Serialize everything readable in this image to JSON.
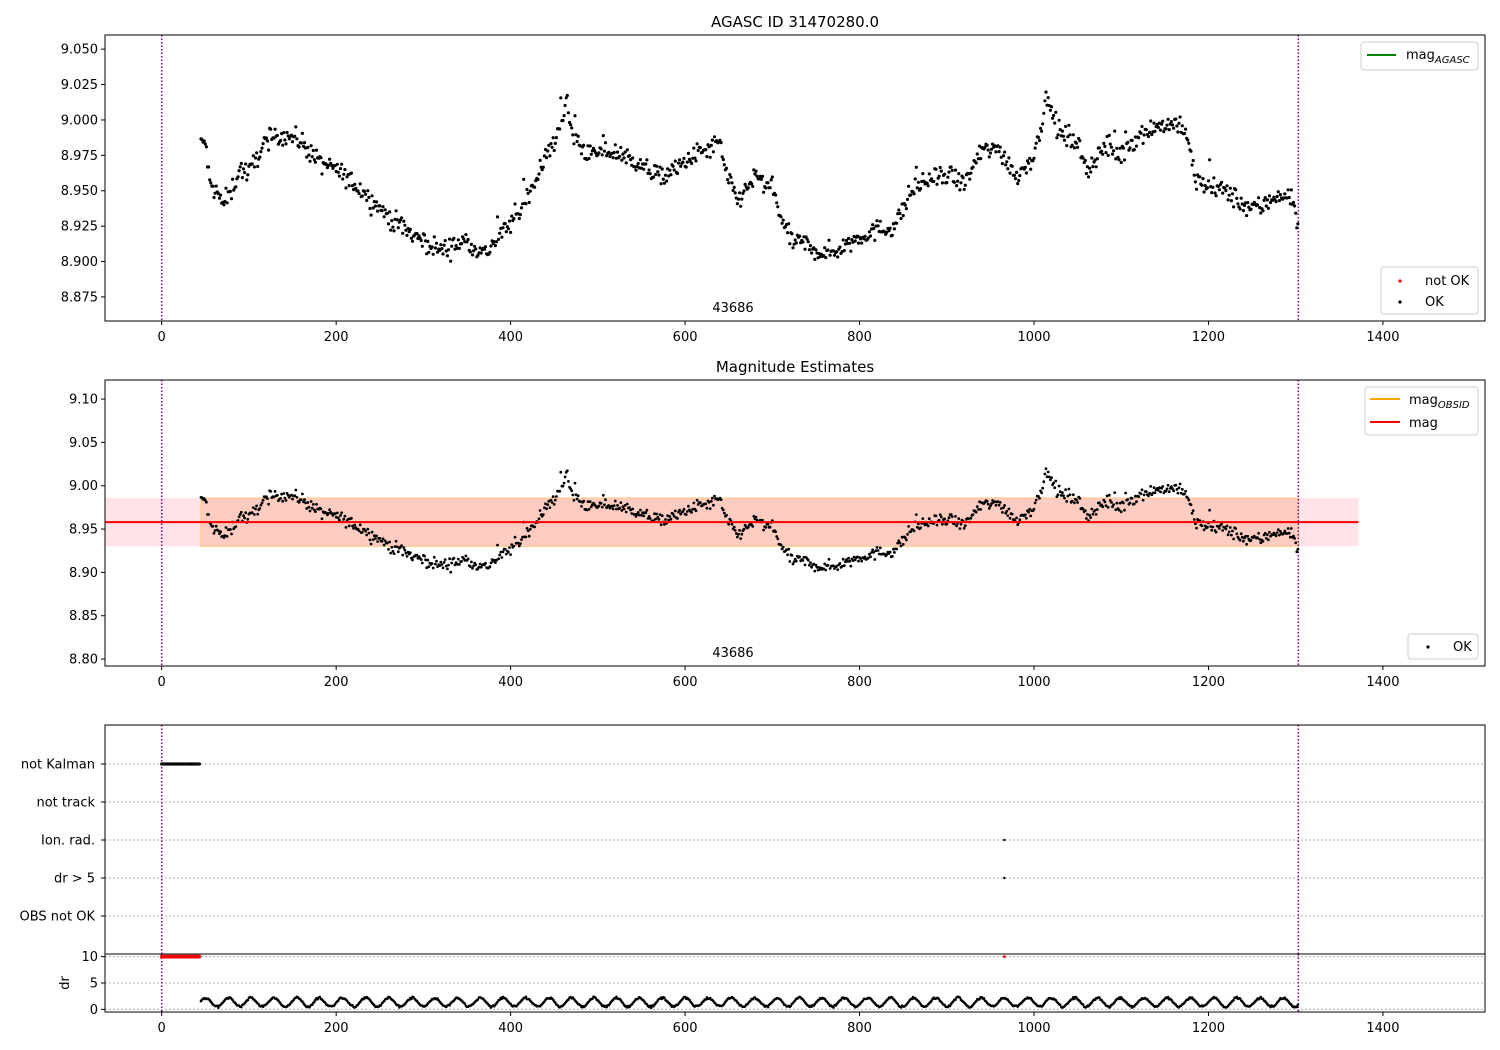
{
  "figure": {
    "title_top": "AGASC ID 31470280.0",
    "title_mid": "Magnitude Estimates"
  },
  "colors": {
    "agasc_line": "#008000",
    "obsid_line": "#ffa500",
    "mag_line": "#ff0000",
    "not_ok": "#ff0000",
    "ok": "#000000",
    "vline": "#800080",
    "band_outer": "#ffc0cb",
    "band_inner": "#ffa07a"
  },
  "chart_data": [
    {
      "type": "scatter",
      "title": "AGASC ID 31470280.0",
      "xlim": [
        -65,
        1517
      ],
      "ylim": [
        8.858,
        9.06
      ],
      "xticks": [
        0,
        200,
        400,
        600,
        800,
        1000,
        1200,
        1400
      ],
      "yticks": [
        8.875,
        8.9,
        8.925,
        8.95,
        8.975,
        9.0,
        9.025,
        9.05
      ],
      "ytick_labels": [
        "8.875",
        "8.900",
        "8.925",
        "8.950",
        "8.975",
        "9.000",
        "9.025",
        "9.050"
      ],
      "obsid_label": "43686",
      "obsid_label_x": 650,
      "vlines": [
        0,
        1303
      ],
      "legends": [
        {
          "placement": "top-right",
          "entries": [
            {
              "label": "mag",
              "sub": "AGASC",
              "kind": "line",
              "color": "#008000"
            }
          ]
        },
        {
          "placement": "bottom-right",
          "entries": [
            {
              "label": "not OK",
              "kind": "dot",
              "color": "#ff0000"
            },
            {
              "label": "OK",
              "kind": "dot",
              "color": "#000000"
            }
          ]
        }
      ],
      "series": [
        {
          "name": "OK",
          "color": "#000000",
          "anchors": [
            [
              45,
              8.983
            ],
            [
              50,
              8.985
            ],
            [
              55,
              8.955
            ],
            [
              65,
              8.947
            ],
            [
              70,
              8.94
            ],
            [
              80,
              8.95
            ],
            [
              90,
              8.966
            ],
            [
              100,
              8.962
            ],
            [
              110,
              8.975
            ],
            [
              120,
              8.985
            ],
            [
              140,
              8.99
            ],
            [
              160,
              8.985
            ],
            [
              180,
              8.97
            ],
            [
              200,
              8.965
            ],
            [
              230,
              8.95
            ],
            [
              260,
              8.932
            ],
            [
              290,
              8.918
            ],
            [
              320,
              8.908
            ],
            [
              350,
              8.915
            ],
            [
              370,
              8.905
            ],
            [
              390,
              8.92
            ],
            [
              410,
              8.935
            ],
            [
              430,
              8.96
            ],
            [
              450,
              8.985
            ],
            [
              465,
              9.012
            ],
            [
              470,
              8.99
            ],
            [
              490,
              8.975
            ],
            [
              510,
              8.978
            ],
            [
              530,
              8.975
            ],
            [
              550,
              8.968
            ],
            [
              570,
              8.96
            ],
            [
              590,
              8.965
            ],
            [
              610,
              8.975
            ],
            [
              630,
              8.98
            ],
            [
              640,
              8.985
            ],
            [
              645,
              8.965
            ],
            [
              660,
              8.943
            ],
            [
              680,
              8.96
            ],
            [
              700,
              8.95
            ],
            [
              720,
              8.915
            ],
            [
              740,
              8.912
            ],
            [
              760,
              8.905
            ],
            [
              780,
              8.91
            ],
            [
              800,
              8.918
            ],
            [
              820,
              8.922
            ],
            [
              840,
              8.925
            ],
            [
              860,
              8.95
            ],
            [
              880,
              8.958
            ],
            [
              900,
              8.96
            ],
            [
              920,
              8.955
            ],
            [
              940,
              8.978
            ],
            [
              960,
              8.98
            ],
            [
              980,
              8.96
            ],
            [
              1000,
              8.975
            ],
            [
              1015,
              9.015
            ],
            [
              1030,
              8.99
            ],
            [
              1050,
              8.985
            ],
            [
              1060,
              8.965
            ],
            [
              1080,
              8.98
            ],
            [
              1100,
              8.975
            ],
            [
              1120,
              8.99
            ],
            [
              1140,
              8.995
            ],
            [
              1160,
              8.998
            ],
            [
              1175,
              8.99
            ],
            [
              1185,
              8.958
            ],
            [
              1200,
              8.952
            ],
            [
              1220,
              8.95
            ],
            [
              1240,
              8.94
            ],
            [
              1260,
              8.938
            ],
            [
              1280,
              8.948
            ],
            [
              1295,
              8.945
            ],
            [
              1303,
              8.925
            ]
          ],
          "spread": 0.007
        }
      ]
    },
    {
      "type": "scatter",
      "title": "Magnitude Estimates",
      "xlim": [
        -65,
        1517
      ],
      "ylim": [
        8.792,
        9.122
      ],
      "xticks": [
        0,
        200,
        400,
        600,
        800,
        1000,
        1200,
        1400
      ],
      "yticks": [
        8.8,
        8.85,
        8.9,
        8.95,
        9.0,
        9.05,
        9.1
      ],
      "ytick_labels": [
        "8.80",
        "8.85",
        "8.90",
        "8.95",
        "9.00",
        "9.05",
        "9.10"
      ],
      "obsid_label": "43686",
      "obsid_label_x": 650,
      "vlines": [
        0,
        1303
      ],
      "mag_line": {
        "value": 8.958,
        "x_range": [
          -65,
          1372
        ],
        "color": "#ff0000"
      },
      "mag_band": {
        "low": 8.93,
        "high": 8.986,
        "x_range": [
          -65,
          1372
        ],
        "color": "#ffc0cb"
      },
      "obsid_band": {
        "low": 8.93,
        "high": 8.986,
        "x_range": [
          45,
          1303
        ],
        "color": "#ffa07a"
      },
      "legends": [
        {
          "placement": "top-right",
          "entries": [
            {
              "label": "mag",
              "sub": "OBSID",
              "kind": "line",
              "color": "#ffa500"
            },
            {
              "label": "mag",
              "kind": "line",
              "color": "#ff0000"
            }
          ]
        },
        {
          "placement": "bottom-right",
          "entries": [
            {
              "label": "OK",
              "kind": "dot",
              "color": "#000000"
            }
          ]
        }
      ]
    },
    {
      "type": "scatter",
      "title": "",
      "xlim": [
        -65,
        1517
      ],
      "categories": [
        "not Kalman",
        "not track",
        "Ion. rad.",
        "dr > 5",
        "OBS not OK"
      ],
      "flags": {
        "not Kalman": {
          "x_range": [
            0,
            44
          ],
          "step": 1.2,
          "color": "#000000"
        },
        "Ion. rad.": {
          "points": [
            966
          ],
          "color": "#000000"
        },
        "dr > 5": {
          "points": [
            966
          ],
          "color": "#000000"
        }
      },
      "vlines": [
        0,
        1303
      ]
    },
    {
      "type": "scatter",
      "title": "",
      "ylabel": "dr",
      "xlim": [
        -65,
        1517
      ],
      "ylim": [
        -0.5,
        10.5
      ],
      "xticks": [
        0,
        200,
        400,
        600,
        800,
        1000,
        1200,
        1400
      ],
      "yticks": [
        0,
        5,
        10
      ],
      "ytick_labels": [
        "0",
        "5",
        "10"
      ],
      "dr_capped": {
        "x_range": [
          0,
          44
        ],
        "value": 10,
        "extra_points": [
          966
        ],
        "color": "#ff0000"
      },
      "dr_range": {
        "x_range": [
          45,
          1303
        ],
        "low": 0.3,
        "high": 2.4,
        "color": "#000000"
      },
      "vlines": [
        0,
        1303
      ]
    }
  ]
}
